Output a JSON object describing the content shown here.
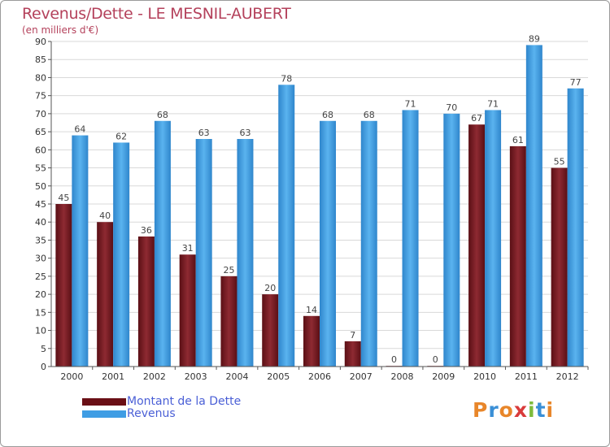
{
  "chart_data": {
    "type": "bar",
    "title": "Revenus/Dette - LE MESNIL-AUBERT",
    "subtitle": "(en milliers d'€)",
    "categories": [
      "2000",
      "2001",
      "2002",
      "2003",
      "2004",
      "2005",
      "2006",
      "2007",
      "2008",
      "2009",
      "2010",
      "2011",
      "2012"
    ],
    "series": [
      {
        "name": "Montant de la Dette",
        "color": "#7b1a21",
        "values": [
          45,
          40,
          36,
          31,
          25,
          20,
          14,
          7,
          0,
          0,
          67,
          61,
          55
        ]
      },
      {
        "name": "Revenus",
        "color": "#3f9de4",
        "values": [
          64,
          62,
          68,
          63,
          63,
          78,
          68,
          68,
          71,
          70,
          71,
          89,
          77
        ]
      }
    ],
    "ylim": [
      0,
      90
    ],
    "yticks": [
      0,
      5,
      10,
      15,
      20,
      25,
      30,
      35,
      40,
      45,
      50,
      55,
      60,
      65,
      70,
      75,
      80,
      85,
      90
    ],
    "grid": true,
    "legend_position": "bottom-left"
  },
  "logo": {
    "text": "Proxiti"
  }
}
